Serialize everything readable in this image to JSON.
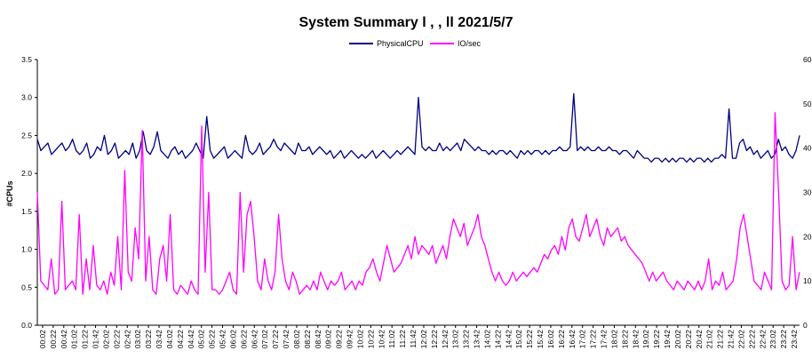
{
  "chart_data": {
    "type": "line",
    "title": "System Summary l  ,  ,     ll       2021/5/7",
    "ylabel": "#CPUs",
    "ylim": [
      0,
      3.5
    ],
    "y_ticks": [
      "0.0",
      "0.5",
      "1.0",
      "1.5",
      "2.0",
      "2.5",
      "3.0",
      "3.5"
    ],
    "y2lim": [
      0,
      60
    ],
    "y2_ticks": [
      "0",
      "10",
      "20",
      "30",
      "40",
      "50",
      "60"
    ],
    "legend_position": "top-center",
    "grid": false,
    "x_ticks": [
      "00:02",
      "00:22",
      "00:42",
      "01:02",
      "01:22",
      "01:42",
      "02:02",
      "02:22",
      "02:42",
      "03:02",
      "03:22",
      "03:42",
      "04:02",
      "04:22",
      "04:42",
      "05:02",
      "05:22",
      "05:42",
      "06:02",
      "06:22",
      "06:42",
      "07:02",
      "07:22",
      "07:42",
      "08:02",
      "08:22",
      "08:42",
      "09:02",
      "09:22",
      "09:42",
      "10:02",
      "10:22",
      "10:42",
      "11:02",
      "11:22",
      "11:42",
      "12:02",
      "12:22",
      "12:42",
      "13:02",
      "13:22",
      "13:42",
      "14:02",
      "14:22",
      "14:42",
      "15:02",
      "15:22",
      "15:42",
      "16:02",
      "16:22",
      "16:42",
      "17:02",
      "17:22",
      "17:42",
      "18:02",
      "18:22",
      "18:42",
      "19:02",
      "19:22",
      "19:42",
      "20:02",
      "20:22",
      "20:42",
      "21:02",
      "21:22",
      "21:42",
      "22:02",
      "22:22",
      "22:42",
      "23:02",
      "23:22",
      "23:42"
    ],
    "series": [
      {
        "name": "PhysicalCPU",
        "axis": "left",
        "color": "#000080",
        "values": [
          2.45,
          2.3,
          2.35,
          2.4,
          2.25,
          2.3,
          2.35,
          2.4,
          2.3,
          2.35,
          2.45,
          2.3,
          2.25,
          2.3,
          2.4,
          2.2,
          2.25,
          2.35,
          2.3,
          2.5,
          2.25,
          2.3,
          2.4,
          2.2,
          2.25,
          2.3,
          2.25,
          2.4,
          2.2,
          2.3,
          2.55,
          2.3,
          2.25,
          2.35,
          2.55,
          2.3,
          2.25,
          2.2,
          2.3,
          2.35,
          2.25,
          2.3,
          2.2,
          2.25,
          2.3,
          2.4,
          2.3,
          2.2,
          2.75,
          2.3,
          2.2,
          2.25,
          2.3,
          2.35,
          2.2,
          2.25,
          2.3,
          2.25,
          2.2,
          2.5,
          2.3,
          2.25,
          2.3,
          2.4,
          2.25,
          2.3,
          2.35,
          2.45,
          2.35,
          2.3,
          2.4,
          2.35,
          2.3,
          2.25,
          2.4,
          2.3,
          2.3,
          2.35,
          2.25,
          2.3,
          2.35,
          2.3,
          2.25,
          2.3,
          2.2,
          2.25,
          2.3,
          2.2,
          2.25,
          2.3,
          2.25,
          2.2,
          2.25,
          2.2,
          2.25,
          2.3,
          2.2,
          2.25,
          2.3,
          2.25,
          2.2,
          2.25,
          2.3,
          2.25,
          2.3,
          2.35,
          2.3,
          2.25,
          3.0,
          2.35,
          2.3,
          2.35,
          2.3,
          2.3,
          2.4,
          2.3,
          2.35,
          2.3,
          2.35,
          2.4,
          2.3,
          2.45,
          2.4,
          2.35,
          2.3,
          2.35,
          2.3,
          2.3,
          2.25,
          2.3,
          2.25,
          2.3,
          2.3,
          2.25,
          2.3,
          2.25,
          2.2,
          2.3,
          2.25,
          2.3,
          2.25,
          2.3,
          2.3,
          2.25,
          2.3,
          2.25,
          2.3,
          2.3,
          2.35,
          2.3,
          2.3,
          2.35,
          3.05,
          2.3,
          2.35,
          2.3,
          2.35,
          2.3,
          2.3,
          2.35,
          2.3,
          2.3,
          2.35,
          2.3,
          2.3,
          2.25,
          2.3,
          2.3,
          2.25,
          2.2,
          2.3,
          2.25,
          2.2,
          2.2,
          2.15,
          2.2,
          2.2,
          2.15,
          2.2,
          2.15,
          2.2,
          2.15,
          2.2,
          2.2,
          2.15,
          2.2,
          2.15,
          2.2,
          2.2,
          2.15,
          2.2,
          2.15,
          2.2,
          2.2,
          2.25,
          2.2,
          2.85,
          2.2,
          2.2,
          2.4,
          2.45,
          2.3,
          2.35,
          2.25,
          2.3,
          2.2,
          2.25,
          2.3,
          2.2,
          2.25,
          2.45,
          2.3,
          2.35,
          2.25,
          2.2,
          2.3,
          2.5
        ]
      },
      {
        "name": "IO/sec",
        "axis": "right",
        "color": "#FF00FF",
        "values": [
          30,
          10,
          9,
          8,
          15,
          7,
          8,
          28,
          8,
          9,
          10,
          8,
          25,
          7,
          15,
          8,
          18,
          9,
          8,
          10,
          7,
          12,
          9,
          20,
          8,
          35,
          12,
          10,
          22,
          15,
          44,
          10,
          20,
          8,
          7,
          15,
          18,
          10,
          25,
          8,
          7,
          9,
          8,
          7,
          10,
          8,
          7,
          45,
          12,
          30,
          8,
          8,
          7,
          8,
          10,
          12,
          8,
          7,
          30,
          12,
          25,
          28,
          20,
          10,
          8,
          15,
          10,
          8,
          12,
          25,
          15,
          10,
          8,
          12,
          10,
          7,
          8,
          9,
          8,
          10,
          8,
          12,
          10,
          8,
          10,
          9,
          10,
          12,
          8,
          9,
          10,
          8,
          10,
          9,
          12,
          13,
          15,
          12,
          10,
          14,
          18,
          15,
          12,
          13,
          14,
          16,
          18,
          15,
          20,
          16,
          18,
          17,
          16,
          18,
          14,
          16,
          18,
          15,
          20,
          24,
          22,
          20,
          23,
          18,
          20,
          22,
          25,
          20,
          18,
          15,
          12,
          10,
          12,
          10,
          9,
          10,
          12,
          10,
          11,
          12,
          11,
          12,
          13,
          12,
          14,
          16,
          15,
          17,
          18,
          16,
          20,
          17,
          22,
          24,
          20,
          19,
          22,
          25,
          20,
          22,
          24,
          20,
          18,
          22,
          20,
          21,
          22,
          19,
          20,
          18,
          17,
          16,
          15,
          14,
          12,
          10,
          12,
          10,
          11,
          12,
          10,
          9,
          8,
          10,
          9,
          8,
          10,
          9,
          8,
          10,
          8,
          10,
          15,
          8,
          10,
          9,
          12,
          8,
          9,
          10,
          15,
          22,
          25,
          20,
          15,
          10,
          9,
          8,
          12,
          10,
          8,
          48,
          30,
          10,
          8,
          9,
          20,
          8,
          12
        ]
      }
    ]
  }
}
